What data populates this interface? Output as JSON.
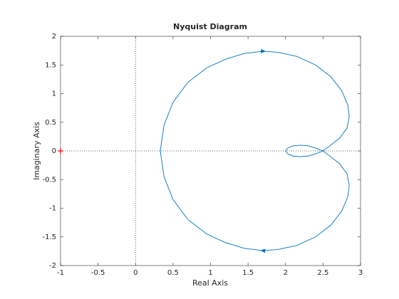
{
  "chart_data": {
    "type": "line",
    "title": "Nyquist Diagram",
    "x_label": "Real Axis",
    "y_label": "Imaginary Axis",
    "xlim": [
      -1,
      3
    ],
    "xticks": [
      -1,
      -0.5,
      0,
      0.5,
      1,
      1.5,
      2,
      2.5,
      3
    ],
    "ylim": [
      -2,
      2
    ],
    "yticks": [
      -2,
      -1.5,
      -1,
      -0.5,
      0,
      0.5,
      1,
      1.5,
      2
    ],
    "grid": false,
    "zero_lines": true,
    "direction_arrows": true,
    "series": [
      {
        "color": "#0072bd",
        "x": [
          2.0,
          2.03,
          2.1,
          2.2,
          2.3,
          2.4,
          2.5,
          2.6,
          2.72,
          2.82,
          2.85,
          2.83,
          2.75,
          2.6,
          2.4,
          2.15,
          1.9,
          1.7,
          1.45,
          1.2,
          0.95,
          0.7,
          0.5,
          0.38,
          0.33,
          0.38,
          0.5,
          0.7,
          0.95,
          1.2,
          1.45,
          1.7,
          1.9,
          2.15,
          2.4,
          2.6,
          2.75,
          2.83,
          2.85,
          2.82,
          2.72,
          2.6,
          2.5,
          2.4,
          2.3,
          2.2,
          2.1,
          2.03,
          2.0
        ],
        "y": [
          0.0,
          0.05,
          0.09,
          0.1,
          0.09,
          0.05,
          0.0,
          -0.1,
          -0.22,
          -0.4,
          -0.6,
          -0.8,
          -1.05,
          -1.3,
          -1.5,
          -1.65,
          -1.72,
          -1.74,
          -1.7,
          -1.6,
          -1.45,
          -1.2,
          -0.85,
          -0.45,
          0.0,
          0.45,
          0.85,
          1.2,
          1.45,
          1.6,
          1.7,
          1.74,
          1.72,
          1.65,
          1.5,
          1.3,
          1.05,
          0.8,
          0.6,
          0.4,
          0.22,
          0.1,
          0.0,
          -0.05,
          -0.09,
          -0.1,
          -0.09,
          -0.05,
          0.0
        ]
      },
      {
        "color": "#ff0000",
        "marker": "+",
        "x": [
          -1
        ],
        "y": [
          0
        ]
      }
    ]
  }
}
